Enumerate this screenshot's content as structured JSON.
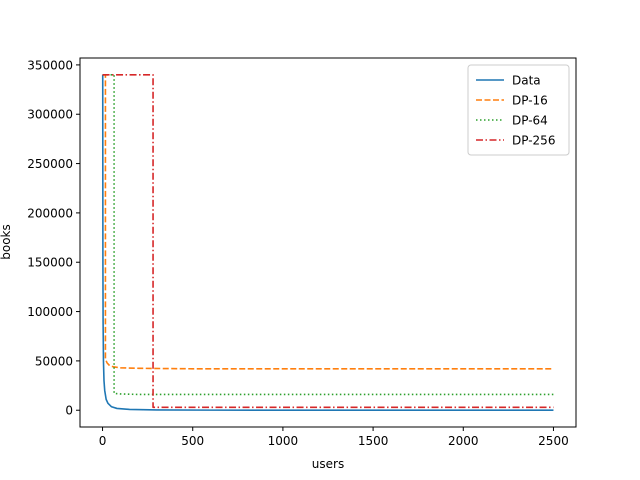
{
  "chart_data": {
    "type": "line",
    "title": "",
    "xlabel": "users",
    "ylabel": "books",
    "xlim": [
      -125,
      2625
    ],
    "ylim": [
      -17000,
      357000
    ],
    "xticks": [
      0,
      500,
      1000,
      1500,
      2000,
      2500
    ],
    "yticks": [
      0,
      50000,
      100000,
      150000,
      200000,
      250000,
      300000,
      350000
    ],
    "xtick_labels": [
      "0",
      "500",
      "1000",
      "1500",
      "2000",
      "2500"
    ],
    "ytick_labels": [
      "0",
      "50000",
      "100000",
      "150000",
      "200000",
      "250000",
      "300000",
      "350000"
    ],
    "grid": false,
    "legend_position": "top-right",
    "series": [
      {
        "name": "Data",
        "color": "#1f77b4",
        "style": "solid",
        "x": [
          1,
          2,
          3,
          5,
          8,
          12,
          20,
          30,
          50,
          80,
          150,
          300,
          600,
          1000,
          2500
        ],
        "y": [
          340000,
          150000,
          90000,
          50000,
          30000,
          20000,
          11000,
          7000,
          3500,
          1800,
          800,
          300,
          100,
          50,
          10
        ]
      },
      {
        "name": "DP-16",
        "color": "#ff7f0e",
        "style": "dashed",
        "x": [
          0,
          16,
          16,
          25,
          40,
          60,
          100,
          200,
          500,
          1000,
          2500
        ],
        "y": [
          340000,
          340000,
          52000,
          48000,
          45000,
          44000,
          43000,
          42500,
          42000,
          42000,
          42000
        ]
      },
      {
        "name": "DP-64",
        "color": "#2ca02c",
        "style": "dotted",
        "x": [
          0,
          64,
          64,
          100,
          200,
          500,
          1000,
          2500
        ],
        "y": [
          340000,
          340000,
          17000,
          16500,
          16000,
          16000,
          16000,
          16000
        ]
      },
      {
        "name": "DP-256",
        "color": "#d62728",
        "style": "dashdot",
        "x": [
          0,
          280,
          280,
          500,
          1000,
          2500
        ],
        "y": [
          340000,
          340000,
          3000,
          3000,
          3000,
          3000
        ]
      }
    ]
  }
}
